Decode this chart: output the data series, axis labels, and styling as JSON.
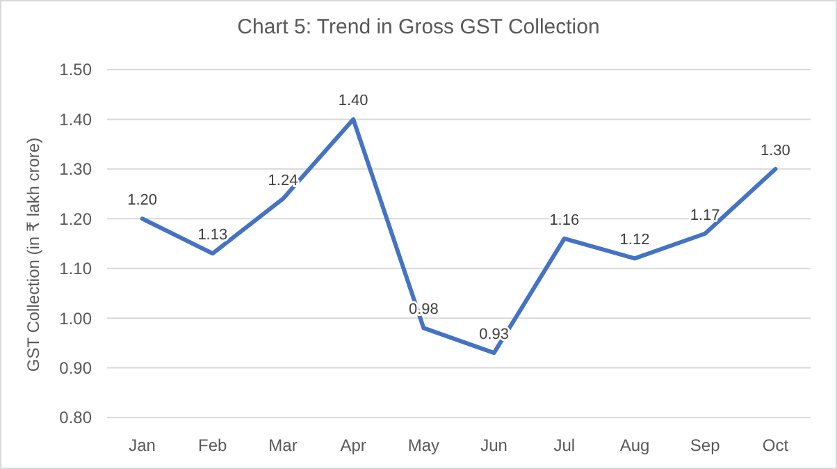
{
  "chart_data": {
    "type": "line",
    "title": "Chart 5: Trend in Gross GST Collection",
    "ylabel": "GST Collection (in ₹ lakh crore)",
    "categories": [
      "Jan",
      "Feb",
      "Mar",
      "Apr",
      "May",
      "Jun",
      "Jul",
      "Aug",
      "Sep",
      "Oct"
    ],
    "series": [
      {
        "color": "#4472c4",
        "values": [
          1.2,
          1.13,
          1.24,
          1.4,
          0.98,
          0.93,
          1.16,
          1.12,
          1.17,
          1.3
        ],
        "value_labels": [
          "1.20",
          "1.13",
          "1.24",
          "1.40",
          "0.98",
          "0.93",
          "1.16",
          "1.12",
          "1.17",
          "1.30"
        ]
      }
    ],
    "ylim": [
      0.8,
      1.5
    ],
    "yticks": [
      {
        "value": 0.8,
        "label": "0.80"
      },
      {
        "value": 0.9,
        "label": "0.90"
      },
      {
        "value": 1.0,
        "label": "1.00"
      },
      {
        "value": 1.1,
        "label": "1.10"
      },
      {
        "value": 1.2,
        "label": "1.20"
      },
      {
        "value": 1.3,
        "label": "1.30"
      },
      {
        "value": 1.4,
        "label": "1.40"
      },
      {
        "value": 1.5,
        "label": "1.50"
      }
    ],
    "grid": "y",
    "marker": "none",
    "line_style": "solid"
  }
}
